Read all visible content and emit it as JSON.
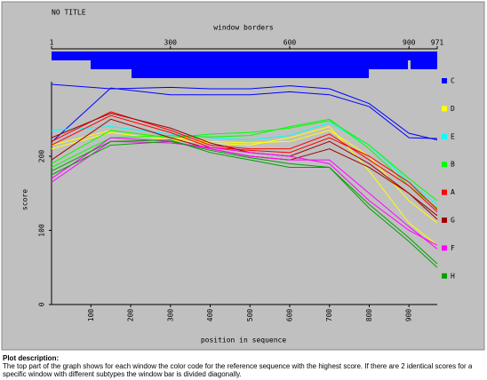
{
  "chart_data": {
    "type": "line",
    "title": "NO TITLE",
    "top_axis_label": "window borders",
    "top_ticks": [
      1,
      300,
      600,
      900,
      971
    ],
    "xlabel": "position in sequence",
    "ylabel": "score",
    "xlim": [
      1,
      971
    ],
    "ylim": [
      0,
      300
    ],
    "xticks": [
      100,
      200,
      300,
      400,
      500,
      600,
      700,
      800,
      900
    ],
    "yticks": [
      0,
      100,
      200
    ],
    "x": [
      1,
      150,
      300,
      400,
      500,
      600,
      700,
      800,
      900,
      971
    ],
    "series": [
      {
        "name": "C",
        "color": "#0000ff",
        "values": [
          297,
          291,
          293,
          291,
          291,
          295,
          291,
          271,
          231,
          222
        ]
      },
      {
        "name": "C",
        "color": "#0000ff",
        "values": [
          219,
          292,
          283,
          283,
          283,
          287,
          283,
          267,
          225,
          224
        ]
      },
      {
        "name": "D",
        "color": "#ffff00",
        "values": [
          215,
          235,
          225,
          220,
          218,
          220,
          235,
          200,
          140,
          110
        ]
      },
      {
        "name": "D",
        "color": "#ffff00",
        "values": [
          210,
          232,
          222,
          218,
          215,
          225,
          240,
          180,
          110,
          80
        ]
      },
      {
        "name": "E",
        "color": "#00ffff",
        "values": [
          235,
          240,
          230,
          225,
          222,
          228,
          245,
          215,
          165,
          135
        ]
      },
      {
        "name": "B",
        "color": "#00ff00",
        "values": [
          190,
          235,
          225,
          230,
          232,
          238,
          248,
          215,
          170,
          140
        ]
      },
      {
        "name": "B",
        "color": "#00ff00",
        "values": [
          185,
          225,
          228,
          226,
          228,
          240,
          250,
          210,
          160,
          130
        ]
      },
      {
        "name": "A",
        "color": "#ff0000",
        "values": [
          220,
          260,
          235,
          215,
          210,
          210,
          230,
          195,
          160,
          125
        ]
      },
      {
        "name": "A",
        "color": "#ff0000",
        "values": [
          215,
          255,
          232,
          212,
          208,
          205,
          225,
          200,
          165,
          128
        ]
      },
      {
        "name": "G",
        "color": "#a00000",
        "values": [
          225,
          258,
          238,
          218,
          205,
          200,
          220,
          190,
          150,
          115
        ]
      },
      {
        "name": "G",
        "color": "#a00000",
        "values": [
          195,
          250,
          225,
          210,
          200,
          195,
          210,
          185,
          150,
          120
        ]
      },
      {
        "name": "F",
        "color": "#ff00ff",
        "values": [
          170,
          225,
          220,
          210,
          200,
          195,
          195,
          150,
          105,
          75
        ]
      },
      {
        "name": "F",
        "color": "#ff00ff",
        "values": [
          165,
          220,
          218,
          212,
          205,
          200,
          190,
          140,
          100,
          80
        ]
      },
      {
        "name": "H",
        "color": "#00a000",
        "values": [
          180,
          220,
          222,
          205,
          195,
          185,
          185,
          135,
          90,
          55
        ]
      },
      {
        "name": "H",
        "color": "#00a000",
        "values": [
          175,
          215,
          220,
          208,
          198,
          190,
          185,
          130,
          85,
          50
        ]
      }
    ]
  },
  "description": {
    "heading": "Plot description:",
    "text": "The top part of the graph shows for each window the color code for the reference sequence with the highest score. If there are 2 identical scores for a specific window with different subtypes the window bar is divided diagonally."
  }
}
